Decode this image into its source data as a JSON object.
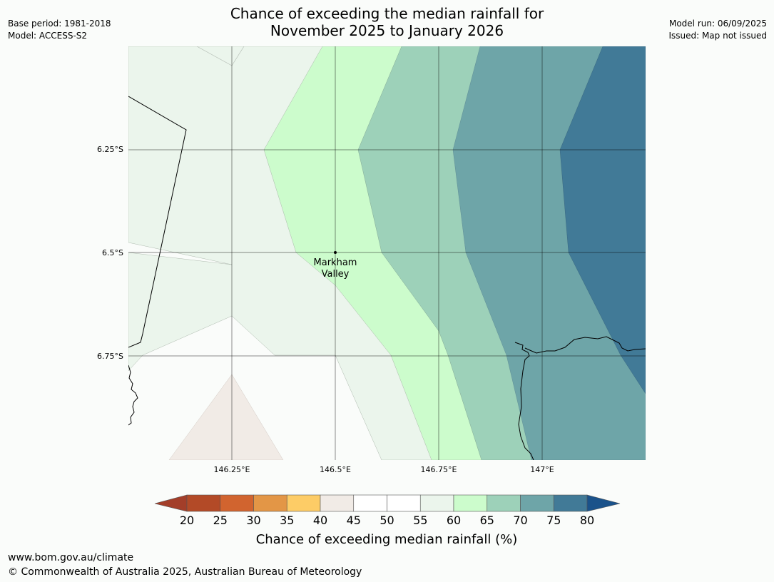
{
  "header": {
    "title_line1": "Chance of exceeding the median rainfall for",
    "title_line2": "November 2025 to January 2026",
    "base_period": "Base period: 1981-2018",
    "model": "Model: ACCESS-S2",
    "model_run": "Model run: 06/09/2025",
    "issued": "Issued: Map not issued"
  },
  "map": {
    "lat_labels": [
      "6.25°S",
      "6.5°S",
      "6.75°S"
    ],
    "lon_labels": [
      "146.25°E",
      "146.5°E",
      "146.75°E",
      "147°E"
    ],
    "place": {
      "name_line1": "Markham",
      "name_line2": "Valley"
    }
  },
  "legend": {
    "ticks": [
      "20",
      "25",
      "30",
      "35",
      "40",
      "45",
      "50",
      "55",
      "60",
      "65",
      "70",
      "75",
      "80"
    ],
    "colors": [
      "#a33e29",
      "#b34a27",
      "#d1642f",
      "#e39646",
      "#fdcc66",
      "#f1ebe6",
      "#ffffff",
      "#ffffff",
      "#ebf5ec",
      "#ccfccc",
      "#9dd1b9",
      "#6ea5a8",
      "#417a97",
      "#1a528a"
    ],
    "label": "Chance of exceeding median rainfall (%)"
  },
  "footer": {
    "url": "www.bom.gov.au/climate",
    "copyright": "© Commonwealth of Australia 2025, Australian Bureau of Meteorology"
  }
}
